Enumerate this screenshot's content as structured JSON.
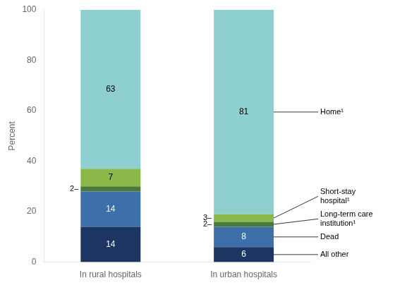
{
  "chart_data": {
    "type": "bar",
    "stacked": true,
    "categories": [
      "In rural hospitals",
      "In urban hospitals"
    ],
    "series": [
      {
        "name": "All other",
        "color": "#1c3561",
        "values": [
          14,
          6
        ]
      },
      {
        "name": "Dead",
        "color": "#3d6faa",
        "values": [
          14,
          8
        ]
      },
      {
        "name": "Long-term care\ninstitution¹",
        "color": "#4a7a3a",
        "values": [
          2,
          2
        ],
        "value_labels": [
          "2–",
          "2–"
        ]
      },
      {
        "name": "Short-stay\nhospital¹",
        "color": "#8ab94a",
        "values": [
          7,
          3
        ],
        "value_labels": [
          "7",
          "3–"
        ]
      },
      {
        "name": "Home¹",
        "color": "#8ecfcf",
        "values": [
          63,
          81
        ]
      }
    ],
    "ylabel": "Percent",
    "ylim": [
      0,
      100
    ],
    "yticks": [
      0,
      20,
      40,
      60,
      80,
      100
    ],
    "grid": false,
    "data_labels": true
  }
}
